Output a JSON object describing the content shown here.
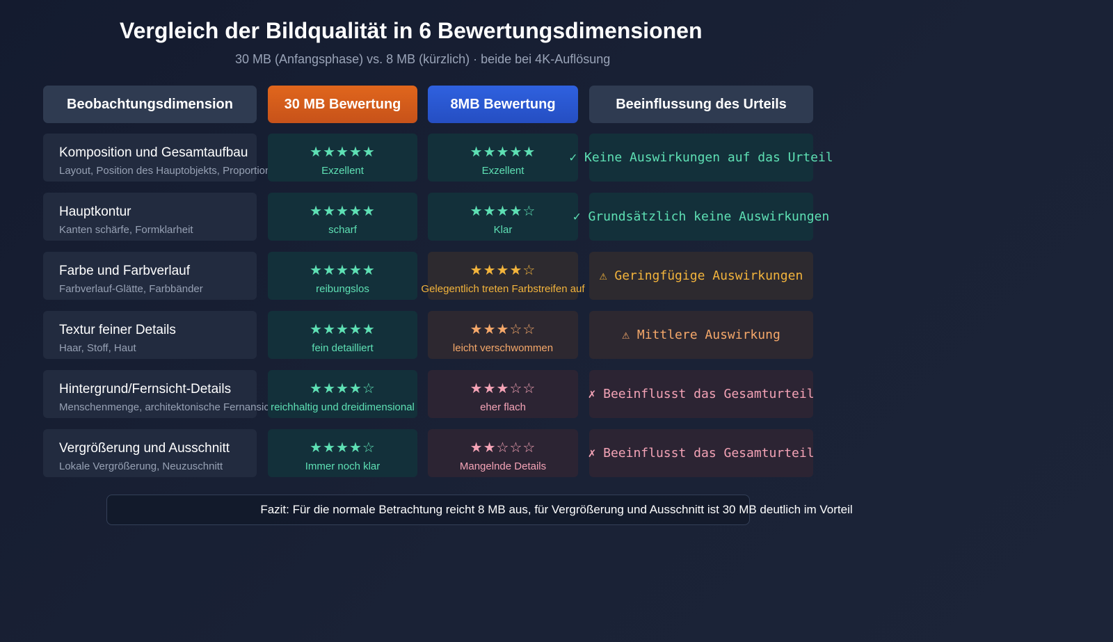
{
  "title": "Vergleich der Bildqualität in 6 Bewertungsdimensionen",
  "subtitle": "30 MB (Anfangsphase) vs. 8 MB (kürzlich) · beide bei 4K-Auflösung",
  "headers": {
    "dimension": "Beobachtungsdimension",
    "a": "30 MB Bewertung",
    "b": "8MB Bewertung",
    "effect": "Beeinflussung des Urteils"
  },
  "colors": {
    "header_dark": "#2f3b51",
    "header_orange": "#d95f18",
    "header_blue": "#2c5ad6",
    "good": "#5ee0b4",
    "warn": "#f3b43c",
    "mid": "#f5a86a",
    "bad": "#f4a3b6"
  },
  "rows": [
    {
      "name": "Komposition und Gesamtaufbau",
      "desc": "Layout, Position des Hauptobjekts, Proportion",
      "a_stars": "★★★★★",
      "a_label": "Exzellent",
      "b_stars": "★★★★★",
      "b_label": "Exzellent",
      "effect": "✓ Keine Auswirkungen auf das Urteil"
    },
    {
      "name": "Hauptkontur",
      "desc": "Kanten schärfe, Formklarheit",
      "a_stars": "★★★★★",
      "a_label": "scharf",
      "b_stars": "★★★★☆",
      "b_label": "Klar",
      "effect": "✓ Grundsätzlich keine Auswirkungen"
    },
    {
      "name": "Farbe und Farbverlauf",
      "desc": "Farbverlauf-Glätte, Farbbänder",
      "a_stars": "★★★★★",
      "a_label": "reibungslos",
      "b_stars": "★★★★☆",
      "b_label": "Gelegentlich treten Farbstreifen auf",
      "effect": "⚠ Geringfügige Auswirkungen"
    },
    {
      "name": "Textur feiner Details",
      "desc": "Haar, Stoff, Haut",
      "a_stars": "★★★★★",
      "a_label": "fein detailliert",
      "b_stars": "★★★☆☆",
      "b_label": "leicht verschwommen",
      "effect": "⚠ Mittlere Auswirkung"
    },
    {
      "name": "Hintergrund/Fernsicht-Details",
      "desc": "Menschenmenge, architektonische Fernansicht",
      "a_stars": "★★★★☆",
      "a_label": "reichhaltig und dreidimensional",
      "b_stars": "★★★☆☆",
      "b_label": "eher flach",
      "effect": "✗ Beeinflusst das Gesamturteil"
    },
    {
      "name": "Vergrößerung und Ausschnitt",
      "desc": "Lokale Vergrößerung, Neuzuschnitt",
      "a_stars": "★★★★☆",
      "a_label": "Immer noch klar",
      "b_stars": "★★☆☆☆",
      "b_label": "Mangelnde Details",
      "effect": "✗ Beeinflusst das Gesamturteil"
    }
  ],
  "footer": "Fazit: Für die normale Betrachtung reicht 8 MB aus, für Vergrößerung und Ausschnitt ist 30 MB deutlich im Vorteil"
}
